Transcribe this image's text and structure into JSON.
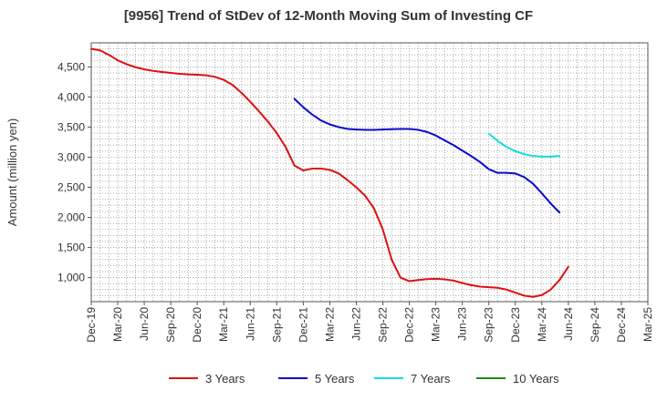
{
  "title": "[9956]  Trend of StDev of 12-Month Moving Sum of Investing CF",
  "chart_data": {
    "type": "line",
    "title": "[9956]  Trend of StDev of 12-Month Moving Sum of Investing CF",
    "xlabel": "",
    "ylabel": "Amount (million yen)",
    "ylim": [
      600,
      4900
    ],
    "yticks": [
      1000,
      1500,
      2000,
      2500,
      3000,
      3500,
      4000,
      4500
    ],
    "ytick_labels": [
      "1,000",
      "1,500",
      "2,000",
      "2,500",
      "3,000",
      "3,500",
      "4,000",
      "4,500"
    ],
    "xlim": [
      "Dec-19",
      "Mar-25"
    ],
    "xtick_labels": [
      "Dec-19",
      "Mar-20",
      "Jun-20",
      "Sep-20",
      "Dec-20",
      "Mar-21",
      "Jun-21",
      "Sep-21",
      "Dec-21",
      "Mar-22",
      "Jun-22",
      "Sep-22",
      "Dec-22",
      "Mar-23",
      "Jun-23",
      "Sep-23",
      "Dec-23",
      "Mar-24",
      "Jun-24",
      "Sep-24",
      "Dec-24",
      "Mar-25"
    ],
    "grid": true,
    "legend_position": "bottom",
    "series": [
      {
        "name": "3 Years",
        "color": "#dd1111",
        "points": [
          [
            "Dec-19",
            4800
          ],
          [
            "Jan-20",
            4775
          ],
          [
            "Feb-20",
            4700
          ],
          [
            "Mar-20",
            4610
          ],
          [
            "Apr-20",
            4545
          ],
          [
            "May-20",
            4495
          ],
          [
            "Jun-20",
            4460
          ],
          [
            "Jul-20",
            4435
          ],
          [
            "Aug-20",
            4415
          ],
          [
            "Sep-20",
            4400
          ],
          [
            "Oct-20",
            4385
          ],
          [
            "Nov-20",
            4375
          ],
          [
            "Dec-20",
            4370
          ],
          [
            "Jan-21",
            4360
          ],
          [
            "Feb-21",
            4335
          ],
          [
            "Mar-21",
            4285
          ],
          [
            "Apr-21",
            4200
          ],
          [
            "May-21",
            4070
          ],
          [
            "Jun-21",
            3920
          ],
          [
            "Jul-21",
            3760
          ],
          [
            "Aug-21",
            3590
          ],
          [
            "Sep-21",
            3400
          ],
          [
            "Oct-21",
            3170
          ],
          [
            "Nov-21",
            2860
          ],
          [
            "Dec-21",
            2780
          ],
          [
            "Jan-22",
            2810
          ],
          [
            "Feb-22",
            2810
          ],
          [
            "Mar-22",
            2790
          ],
          [
            "Apr-22",
            2730
          ],
          [
            "May-22",
            2620
          ],
          [
            "Jun-22",
            2500
          ],
          [
            "Jul-22",
            2360
          ],
          [
            "Aug-22",
            2150
          ],
          [
            "Sep-22",
            1800
          ],
          [
            "Oct-22",
            1300
          ],
          [
            "Nov-22",
            1000
          ],
          [
            "Dec-22",
            940
          ],
          [
            "Jan-23",
            960
          ],
          [
            "Feb-23",
            975
          ],
          [
            "Mar-23",
            980
          ],
          [
            "Apr-23",
            970
          ],
          [
            "May-23",
            950
          ],
          [
            "Jun-23",
            910
          ],
          [
            "Jul-23",
            875
          ],
          [
            "Aug-23",
            850
          ],
          [
            "Sep-23",
            840
          ],
          [
            "Oct-23",
            830
          ],
          [
            "Nov-23",
            800
          ],
          [
            "Dec-23",
            750
          ],
          [
            "Jan-24",
            700
          ],
          [
            "Feb-24",
            680
          ],
          [
            "Mar-24",
            710
          ],
          [
            "Apr-24",
            800
          ],
          [
            "May-24",
            960
          ],
          [
            "Jun-24",
            1180
          ]
        ]
      },
      {
        "name": "5 Years",
        "color": "#0a0acc",
        "points": [
          [
            "Nov-21",
            3970
          ],
          [
            "Dec-21",
            3830
          ],
          [
            "Jan-22",
            3710
          ],
          [
            "Feb-22",
            3610
          ],
          [
            "Mar-22",
            3545
          ],
          [
            "Apr-22",
            3500
          ],
          [
            "May-22",
            3470
          ],
          [
            "Jun-22",
            3460
          ],
          [
            "Jul-22",
            3455
          ],
          [
            "Aug-22",
            3455
          ],
          [
            "Sep-22",
            3460
          ],
          [
            "Oct-22",
            3465
          ],
          [
            "Nov-22",
            3470
          ],
          [
            "Dec-22",
            3470
          ],
          [
            "Jan-23",
            3455
          ],
          [
            "Feb-23",
            3420
          ],
          [
            "Mar-23",
            3360
          ],
          [
            "Apr-23",
            3280
          ],
          [
            "May-23",
            3200
          ],
          [
            "Jun-23",
            3110
          ],
          [
            "Jul-23",
            3020
          ],
          [
            "Aug-23",
            2920
          ],
          [
            "Sep-23",
            2800
          ],
          [
            "Oct-23",
            2740
          ],
          [
            "Nov-23",
            2740
          ],
          [
            "Dec-23",
            2730
          ],
          [
            "Jan-24",
            2670
          ],
          [
            "Feb-24",
            2560
          ],
          [
            "Mar-24",
            2400
          ],
          [
            "Apr-24",
            2230
          ],
          [
            "May-24",
            2080
          ]
        ]
      },
      {
        "name": "7 Years",
        "color": "#11dddd",
        "points": [
          [
            "Sep-23",
            3390
          ],
          [
            "Oct-23",
            3270
          ],
          [
            "Nov-23",
            3170
          ],
          [
            "Dec-23",
            3100
          ],
          [
            "Jan-24",
            3050
          ],
          [
            "Feb-24",
            3020
          ],
          [
            "Mar-24",
            3010
          ],
          [
            "Apr-24",
            3010
          ],
          [
            "May-24",
            3020
          ]
        ]
      },
      {
        "name": "10 Years",
        "color": "#1a8a1a",
        "points": []
      }
    ]
  }
}
